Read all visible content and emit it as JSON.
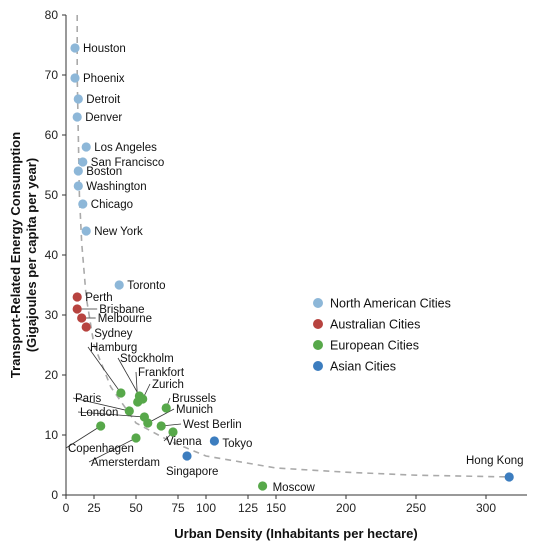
{
  "chart_data": {
    "type": "scatter",
    "title": "",
    "xlabel": "Urban Density (Inhabitants per hectare)",
    "ylabel_line1": "Transport-Related Energy Consumption",
    "ylabel_line2": "(Gigajoules per capita per year)",
    "xlim": [
      0,
      330
    ],
    "ylim": [
      0,
      80
    ],
    "x_ticks": [
      0,
      25,
      50,
      75,
      100,
      125,
      150,
      200,
      250,
      300
    ],
    "y_ticks": [
      0,
      10,
      20,
      30,
      40,
      50,
      60,
      70,
      80
    ],
    "x_tick_labels": [
      "0",
      "25",
      "50",
      "75",
      "100",
      "125",
      "150",
      "200",
      "250",
      "300"
    ],
    "y_tick_labels": [
      "0",
      "10",
      "20",
      "30",
      "40",
      "50",
      "60",
      "70",
      "80"
    ],
    "grid": false,
    "legend_position": "right",
    "trend_curve": [
      [
        10,
        80
      ],
      [
        10,
        70
      ],
      [
        11,
        60
      ],
      [
        12,
        50
      ],
      [
        14,
        42
      ],
      [
        18,
        33
      ],
      [
        25,
        25
      ],
      [
        35,
        18
      ],
      [
        50,
        12
      ],
      [
        70,
        9
      ],
      [
        100,
        6.5
      ],
      [
        150,
        4.5
      ],
      [
        200,
        3.8
      ],
      [
        250,
        3.3
      ],
      [
        320,
        3
      ]
    ],
    "series": [
      {
        "name": "North American Cities",
        "color": "#8db7d8",
        "points": [
          {
            "label": "Houston",
            "x": 8,
            "y": 74.5
          },
          {
            "label": "Phoenix",
            "x": 8,
            "y": 69.5
          },
          {
            "label": "Detroit",
            "x": 11,
            "y": 66
          },
          {
            "label": "Denver",
            "x": 10,
            "y": 63
          },
          {
            "label": "Los Angeles",
            "x": 18,
            "y": 58
          },
          {
            "label": "San Francisco",
            "x": 15,
            "y": 55.5
          },
          {
            "label": "Boston",
            "x": 11,
            "y": 54
          },
          {
            "label": "Washington",
            "x": 11,
            "y": 51.5
          },
          {
            "label": "Chicago",
            "x": 15,
            "y": 48.5
          },
          {
            "label": "New York",
            "x": 18,
            "y": 44
          },
          {
            "label": "Toronto",
            "x": 40,
            "y": 35
          }
        ]
      },
      {
        "name": "Australian Cities",
        "color": "#b7433f",
        "points": [
          {
            "label": "Perth",
            "x": 10,
            "y": 33
          },
          {
            "label": "Brisbane",
            "x": 10,
            "y": 31
          },
          {
            "label": "Melbourne",
            "x": 14,
            "y": 29.5
          },
          {
            "label": "Sydney",
            "x": 18,
            "y": 28
          }
        ]
      },
      {
        "name": "European Cities",
        "color": "#57a84a",
        "points": [
          {
            "label": "Hamburg",
            "x": 41,
            "y": 17
          },
          {
            "label": "Stockholm",
            "x": 52,
            "y": 16.5
          },
          {
            "label": "Frankfort",
            "x": 51,
            "y": 15.5
          },
          {
            "label": "Zurich",
            "x": 54,
            "y": 16
          },
          {
            "label": "Brussels",
            "x": 68,
            "y": 14.5
          },
          {
            "label": "Paris",
            "x": 46,
            "y": 14
          },
          {
            "label": "London",
            "x": 55,
            "y": 13
          },
          {
            "label": "Munich",
            "x": 57,
            "y": 12
          },
          {
            "label": "West Berlin",
            "x": 65,
            "y": 11.5
          },
          {
            "label": "Vienna",
            "x": 72,
            "y": 10.5
          },
          {
            "label": "Copenhagen",
            "x": 29,
            "y": 11.5
          },
          {
            "label": "Amersterdam",
            "x": 50,
            "y": 9.5
          },
          {
            "label": "Moscow",
            "x": 138,
            "y": 1.5
          }
        ]
      },
      {
        "name": "Asian Cities",
        "color": "#3c7dbf",
        "points": [
          {
            "label": "Tokyo",
            "x": 105,
            "y": 9
          },
          {
            "label": "Singapore",
            "x": 83,
            "y": 6.5
          },
          {
            "label": "Hong Kong",
            "x": 317,
            "y": 3
          }
        ]
      }
    ]
  }
}
